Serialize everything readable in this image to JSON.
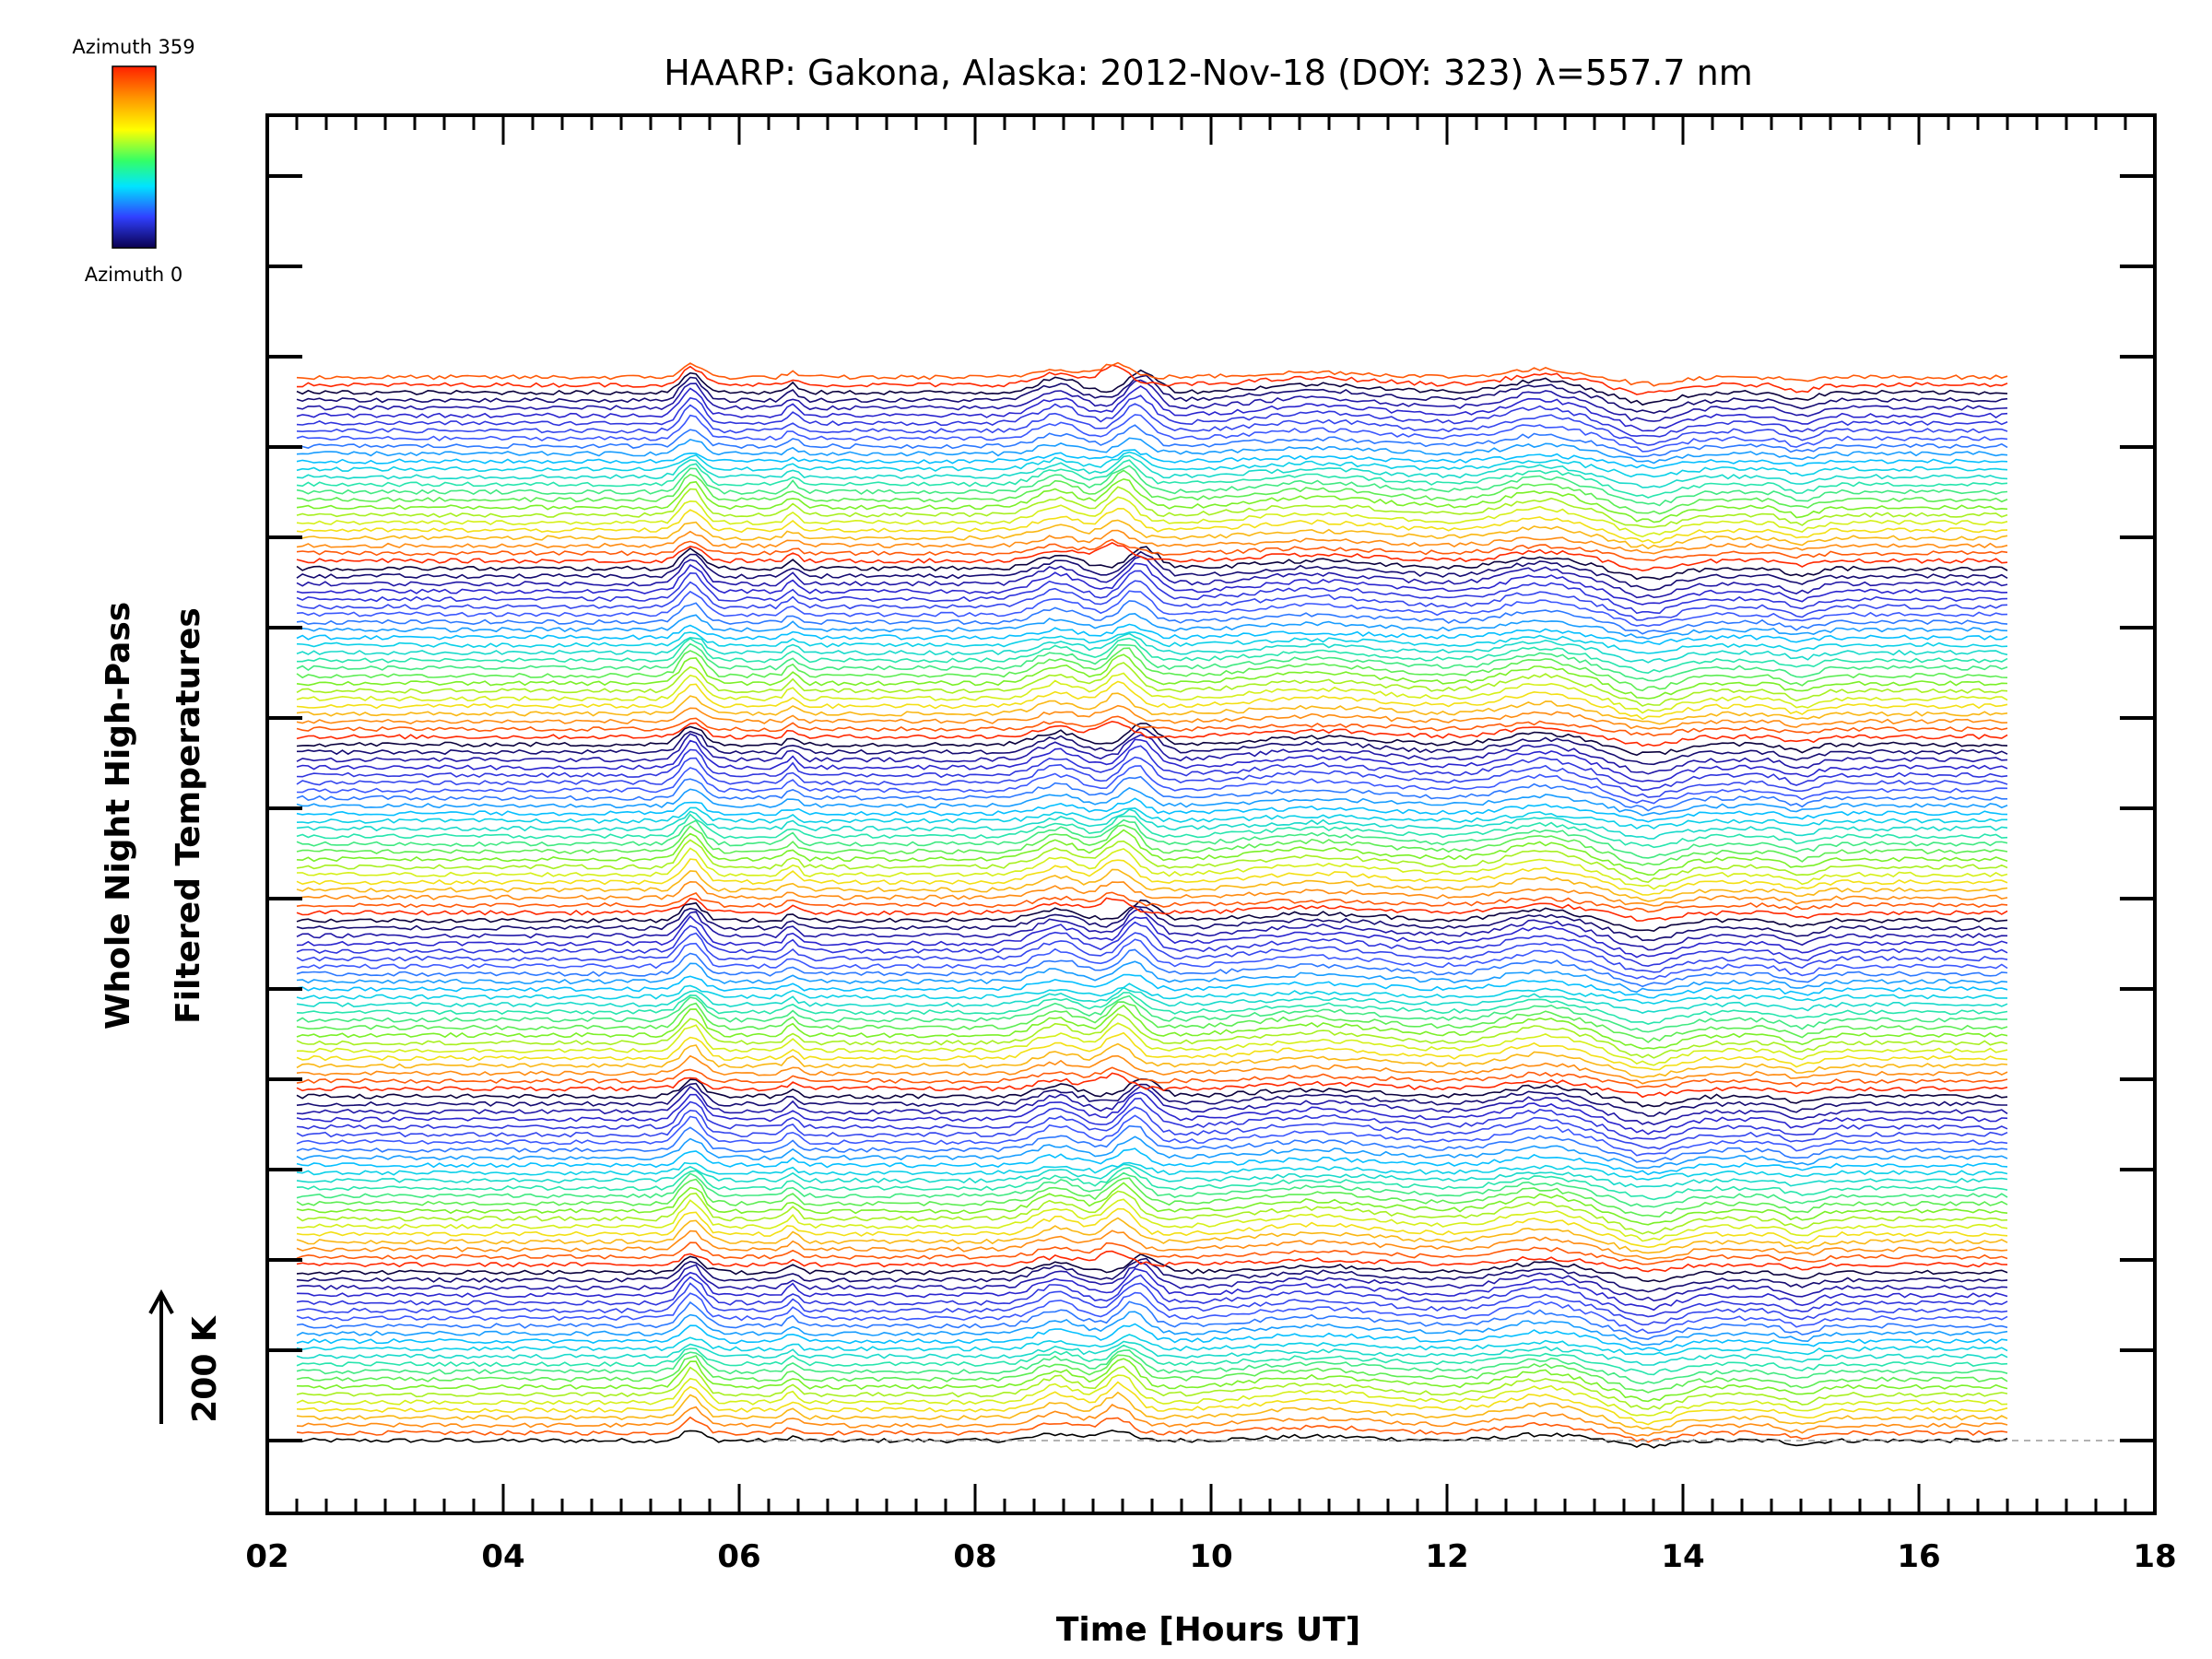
{
  "chart_data": {
    "type": "line",
    "title": "HAARP: Gakona,  Alaska: 2012-Nov-18 (DOY: 323) λ=557.7 nm",
    "xlabel": "Time [Hours UT]",
    "ylabel_line1": "Whole Night High-Pass",
    "ylabel_line2": "Filtered Temperatures",
    "xlim": [
      2,
      18
    ],
    "x_tick_labels": [
      "02",
      "04",
      "06",
      "08",
      "10",
      "12",
      "14",
      "16",
      "18"
    ],
    "x_ticks": [
      2,
      4,
      6,
      8,
      10,
      12,
      14,
      16,
      18
    ],
    "data_x_range": [
      2.25,
      16.75
    ],
    "scale_bar_label": "200 K",
    "colorbar": {
      "top_label": "Azimuth 359",
      "bottom_label": "Azimuth 0",
      "colors": [
        "#ff0000",
        "#ff8000",
        "#ffff00",
        "#00ff00",
        "#00ffff",
        "#0000ff",
        "#000060"
      ]
    },
    "series_count": 140,
    "stacked": true,
    "zero_reference_line": "dashed",
    "features": [
      {
        "x": 5.6,
        "description_value": 150
      },
      {
        "x": 6.45,
        "description_value": 60
      },
      {
        "x": 8.7,
        "description_value": 100
      },
      {
        "x": 9.3,
        "description_value": 160
      },
      {
        "x": 10.9,
        "description_value": 60
      },
      {
        "x": 12.8,
        "description_value": 90
      },
      {
        "x": 13.7,
        "description_value": -80
      },
      {
        "x": 15.0,
        "description_value": -50
      }
    ]
  }
}
